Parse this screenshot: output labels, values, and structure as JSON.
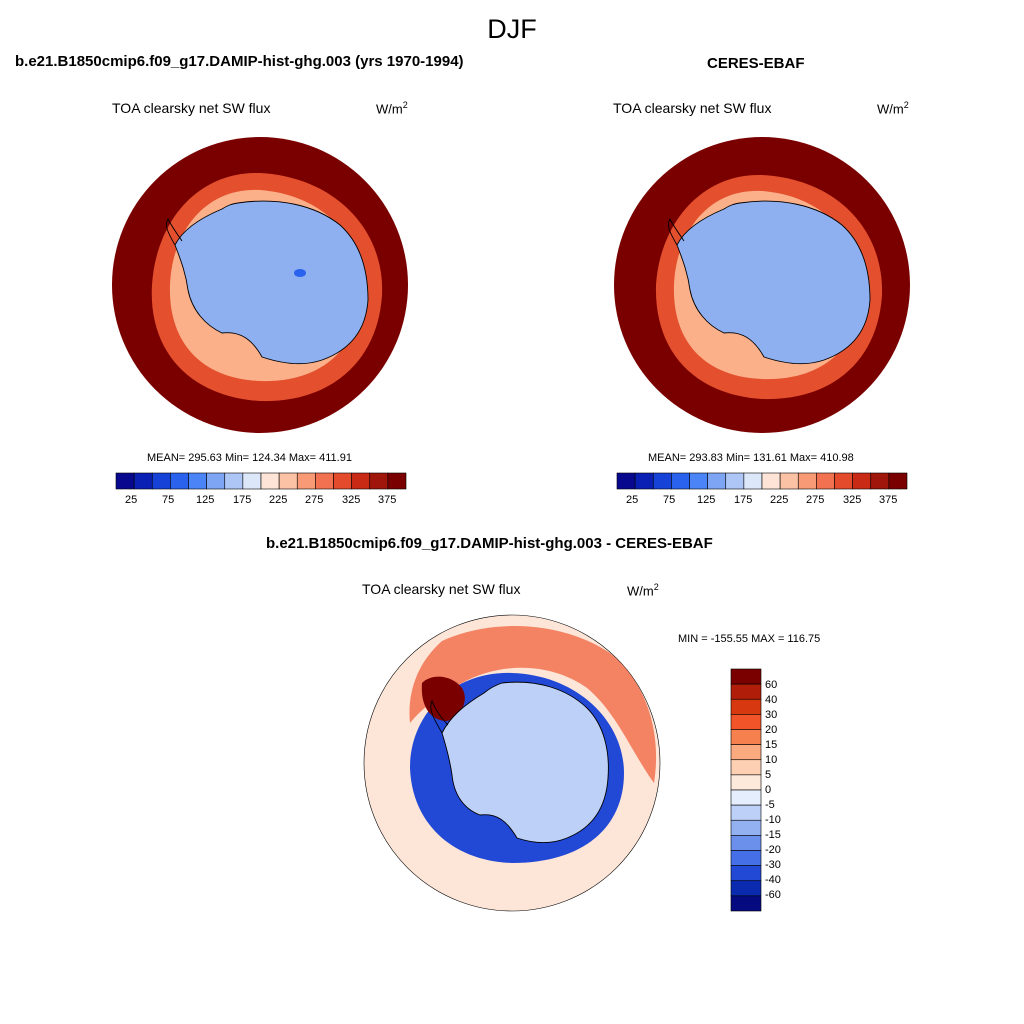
{
  "season_title": "DJF",
  "model_title": "b.e21.B1850cmip6.f09_g17.DAMIP-hist-ghg.003 (yrs 1970-1994)",
  "obs_title": "CERES-EBAF",
  "diff_title": "b.e21.B1850cmip6.f09_g17.DAMIP-hist-ghg.003 - CERES-EBAF",
  "variable": "TOA clearsky net SW flux",
  "units_base": "W/m",
  "units_exp": "2",
  "model_stats": "MEAN= 295.63  Min= 124.34  Max= 411.91",
  "obs_stats": "MEAN= 293.83  Min= 131.61  Max= 410.98",
  "diff_stats": "MIN = -155.55 MAX = 116.75",
  "colors": {
    "abs_scale": [
      "#08088f",
      "#0a1fb4",
      "#1642d8",
      "#2a62ee",
      "#4b84f6",
      "#7ea5f4",
      "#adc6f5",
      "#dce8fa",
      "#fde4d6",
      "#fbc2a5",
      "#f89a76",
      "#f27150",
      "#e44a2c",
      "#c82a16",
      "#a0160a",
      "#7a0000"
    ],
    "diff_scale": [
      "#7a0000",
      "#b01e0a",
      "#d8380f",
      "#f05428",
      "#f7804f",
      "#fbaa80",
      "#fdd0b4",
      "#fde8dc",
      "#e4eefc",
      "#bdd0f7",
      "#93b1f1",
      "#6b90ec",
      "#456fe6",
      "#2248d6",
      "#0a2ab0",
      "#050a80"
    ],
    "ocean_red": "#7a0000",
    "ice_blue": "#8fb0f0",
    "diff_background": "#fde6d8"
  },
  "map_shapes": [
    "ocean-ring",
    "sea-ice-edge",
    "antarctica-continent",
    "coastline"
  ],
  "abs_colorbar_labels": [
    "25",
    "75",
    "125",
    "175",
    "225",
    "275",
    "325",
    "375"
  ],
  "diff_colorbar_labels": [
    "60",
    "40",
    "30",
    "20",
    "15",
    "10",
    "5",
    "0",
    "-5",
    "-10",
    "-15",
    "-20",
    "-30",
    "-40",
    "-60"
  ]
}
